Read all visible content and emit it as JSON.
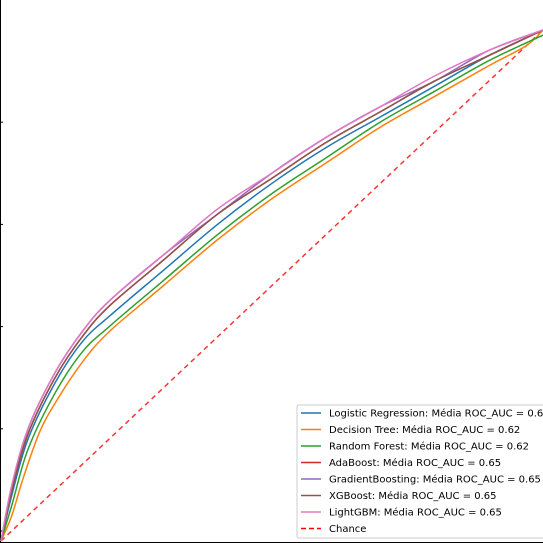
{
  "chart_data": {
    "type": "line",
    "xlim": [
      0,
      1
    ],
    "ylim": [
      0,
      1
    ],
    "grid": false,
    "legend_position": "lower-right",
    "series": [
      {
        "name": "Logistic Regression: Média ROC_AUC = 0.6",
        "color": "#1f77b4",
        "points": [
          [
            0,
            0
          ],
          [
            0.02,
            0.09
          ],
          [
            0.05,
            0.2
          ],
          [
            0.1,
            0.31
          ],
          [
            0.15,
            0.39
          ],
          [
            0.2,
            0.44
          ],
          [
            0.3,
            0.53
          ],
          [
            0.4,
            0.62
          ],
          [
            0.5,
            0.7
          ],
          [
            0.6,
            0.77
          ],
          [
            0.7,
            0.83
          ],
          [
            0.8,
            0.89
          ],
          [
            0.9,
            0.95
          ],
          [
            1,
            1
          ]
        ]
      },
      {
        "name": "Decision Tree: Média ROC_AUC = 0.62",
        "color": "#ff7f0e",
        "points": [
          [
            0,
            0
          ],
          [
            0.02,
            0.05
          ],
          [
            0.04,
            0.12
          ],
          [
            0.07,
            0.21
          ],
          [
            0.1,
            0.27
          ],
          [
            0.15,
            0.35
          ],
          [
            0.2,
            0.41
          ],
          [
            0.3,
            0.5
          ],
          [
            0.4,
            0.59
          ],
          [
            0.5,
            0.67
          ],
          [
            0.6,
            0.74
          ],
          [
            0.7,
            0.81
          ],
          [
            0.8,
            0.87
          ],
          [
            0.9,
            0.93
          ],
          [
            0.97,
            0.97
          ],
          [
            1,
            1
          ]
        ]
      },
      {
        "name": "Random Forest: Média ROC_AUC = 0.62",
        "color": "#2ca02c",
        "points": [
          [
            0,
            0
          ],
          [
            0.02,
            0.07
          ],
          [
            0.05,
            0.18
          ],
          [
            0.1,
            0.29
          ],
          [
            0.15,
            0.37
          ],
          [
            0.2,
            0.42
          ],
          [
            0.3,
            0.51
          ],
          [
            0.4,
            0.6
          ],
          [
            0.5,
            0.68
          ],
          [
            0.6,
            0.75
          ],
          [
            0.7,
            0.82
          ],
          [
            0.8,
            0.88
          ],
          [
            0.9,
            0.94
          ],
          [
            1,
            0.99
          ]
        ]
      },
      {
        "name": "AdaBoost: Média ROC_AUC = 0.65",
        "color": "#d62728",
        "points": [
          [
            0,
            0
          ],
          [
            0.02,
            0.1
          ],
          [
            0.05,
            0.21
          ],
          [
            0.1,
            0.32
          ],
          [
            0.15,
            0.4
          ],
          [
            0.2,
            0.46
          ],
          [
            0.3,
            0.55
          ],
          [
            0.4,
            0.64
          ],
          [
            0.5,
            0.71
          ],
          [
            0.6,
            0.78
          ],
          [
            0.7,
            0.84
          ],
          [
            0.8,
            0.9
          ],
          [
            0.9,
            0.95
          ],
          [
            1,
            1
          ]
        ]
      },
      {
        "name": "GradientBoosting: Média ROC_AUC = 0.65",
        "color": "#9467bd",
        "points": [
          [
            0,
            0
          ],
          [
            0.02,
            0.1
          ],
          [
            0.05,
            0.22
          ],
          [
            0.1,
            0.33
          ],
          [
            0.15,
            0.41
          ],
          [
            0.2,
            0.47
          ],
          [
            0.3,
            0.56
          ],
          [
            0.4,
            0.64
          ],
          [
            0.5,
            0.72
          ],
          [
            0.6,
            0.79
          ],
          [
            0.7,
            0.85
          ],
          [
            0.8,
            0.9
          ],
          [
            0.9,
            0.96
          ],
          [
            1,
            1
          ]
        ]
      },
      {
        "name": "XGBoost: Média ROC_AUC = 0.65",
        "color": "#8c564b",
        "points": [
          [
            0,
            0
          ],
          [
            0.02,
            0.1
          ],
          [
            0.05,
            0.21
          ],
          [
            0.1,
            0.32
          ],
          [
            0.15,
            0.4
          ],
          [
            0.2,
            0.46
          ],
          [
            0.3,
            0.55
          ],
          [
            0.4,
            0.64
          ],
          [
            0.5,
            0.71
          ],
          [
            0.6,
            0.78
          ],
          [
            0.7,
            0.84
          ],
          [
            0.8,
            0.9
          ],
          [
            0.9,
            0.95
          ],
          [
            1,
            1
          ]
        ]
      },
      {
        "name": "LightGBM: Média ROC_AUC = 0.65",
        "color": "#e377c2",
        "points": [
          [
            0,
            0
          ],
          [
            0.02,
            0.11
          ],
          [
            0.05,
            0.22
          ],
          [
            0.1,
            0.33
          ],
          [
            0.15,
            0.41
          ],
          [
            0.2,
            0.47
          ],
          [
            0.3,
            0.56
          ],
          [
            0.4,
            0.65
          ],
          [
            0.5,
            0.72
          ],
          [
            0.6,
            0.79
          ],
          [
            0.7,
            0.85
          ],
          [
            0.8,
            0.91
          ],
          [
            0.9,
            0.96
          ],
          [
            1,
            1
          ]
        ]
      },
      {
        "name": "Chance",
        "color": "#ff0000",
        "dashed": true,
        "points": [
          [
            0,
            0
          ],
          [
            1,
            1
          ]
        ]
      }
    ]
  }
}
